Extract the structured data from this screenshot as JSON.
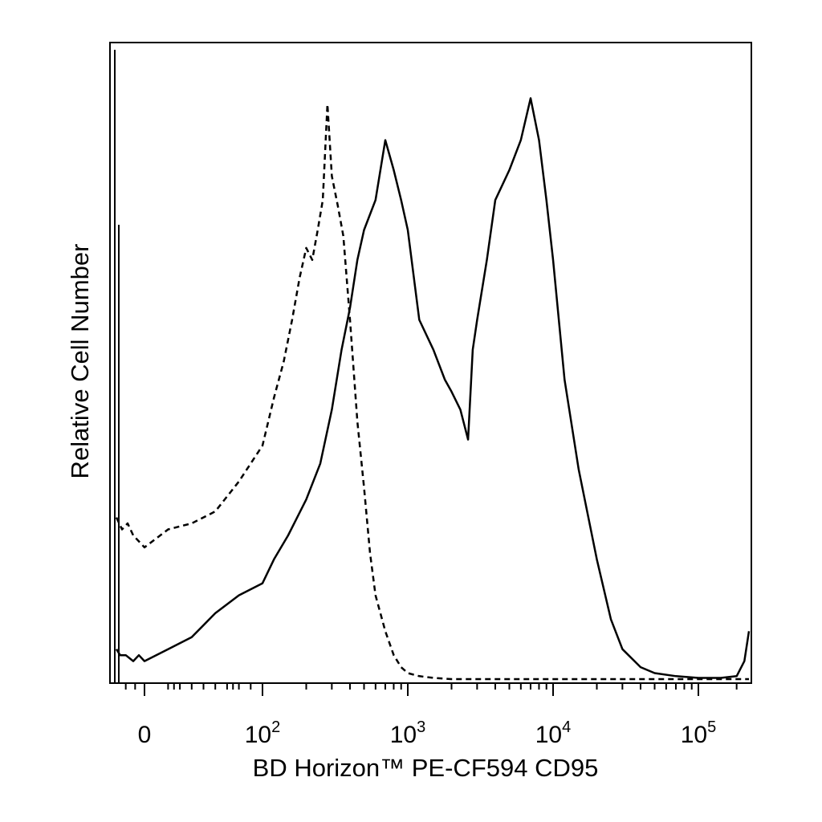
{
  "chart_data": {
    "type": "line",
    "xlabel": "BD Horizon™ PE-CF594 CD95",
    "ylabel": "Relative Cell Number",
    "x_scale": "biexponential",
    "xlim": [
      -150,
      250000
    ],
    "ylim": [
      0,
      100
    ],
    "x_ticks": [
      {
        "value": 0,
        "base": "0",
        "exp": ""
      },
      {
        "value": 100,
        "base": "10",
        "exp": "2"
      },
      {
        "value": 1000,
        "base": "10",
        "exp": "3"
      },
      {
        "value": 10000,
        "base": "10",
        "exp": "4"
      },
      {
        "value": 100000,
        "base": "10",
        "exp": "5"
      }
    ],
    "grid": false,
    "series": [
      {
        "style": "dashed",
        "x": [
          -150,
          -120,
          -90,
          -60,
          -30,
          0,
          20,
          40,
          60,
          80,
          100,
          120,
          140,
          160,
          180,
          200,
          220,
          240,
          260,
          280,
          300,
          330,
          360,
          400,
          450,
          500,
          550,
          600,
          700,
          800,
          900,
          1000,
          1200,
          1500,
          2000,
          5000,
          10000,
          100000,
          250000
        ],
        "y": [
          27,
          25,
          26,
          24,
          23,
          22,
          25,
          26,
          28,
          33,
          39,
          47,
          53,
          60,
          67,
          72,
          70,
          75,
          80,
          96,
          84,
          79,
          74,
          60,
          43,
          32,
          21,
          14,
          8,
          4,
          2,
          1,
          0.5,
          0.2,
          0,
          0,
          0,
          0,
          0
        ]
      },
      {
        "style": "solid",
        "x": [
          -150,
          -130,
          -100,
          -60,
          -30,
          0,
          20,
          40,
          60,
          80,
          100,
          120,
          150,
          200,
          250,
          300,
          350,
          400,
          450,
          500,
          600,
          700,
          800,
          900,
          1000,
          1200,
          1500,
          1800,
          2000,
          2300,
          2600,
          2800,
          3000,
          3500,
          4000,
          5000,
          6000,
          7000,
          8000,
          9000,
          10000,
          12000,
          15000,
          20000,
          25000,
          30000,
          40000,
          50000,
          70000,
          100000,
          150000,
          200000,
          230000,
          250000
        ],
        "y": [
          5,
          4,
          4,
          3,
          4,
          3,
          5,
          7,
          11,
          14,
          16,
          20,
          24,
          30,
          36,
          45,
          55,
          62,
          70,
          75,
          80,
          90,
          85,
          80,
          75,
          60,
          55,
          50,
          48,
          45,
          40,
          55,
          60,
          70,
          80,
          85,
          90,
          97,
          90,
          80,
          70,
          50,
          35,
          20,
          10,
          5,
          2,
          1,
          0.5,
          0.2,
          0.2,
          0.5,
          3,
          8
        ]
      }
    ]
  }
}
